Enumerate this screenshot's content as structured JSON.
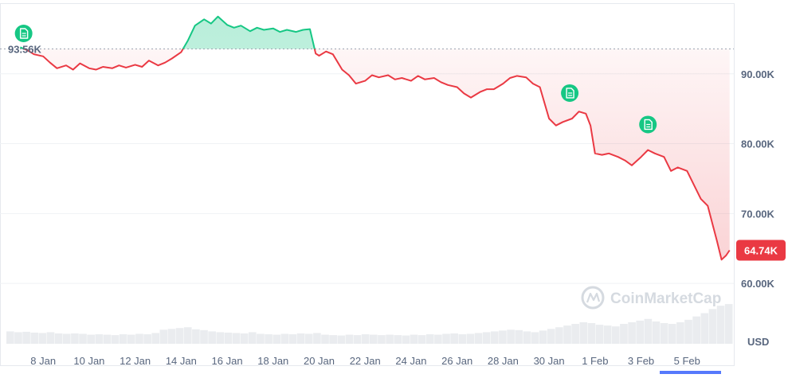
{
  "chart_data": {
    "type": "line",
    "currency_label": "USD",
    "watermark": "CoinMarketCap",
    "reference_price": {
      "value": 93.56,
      "label": "93.56K"
    },
    "current_price": {
      "value": 64.74,
      "label": "64.74K"
    },
    "colors": {
      "up": "#16c784",
      "down": "#ea3943",
      "axis_text": "#58667e",
      "grid": "#eff2f5",
      "volume": "#d9dde2"
    },
    "ylim": [
      55.0,
      100.0
    ],
    "y_ticks": [
      {
        "value": 90,
        "label": "90.00K"
      },
      {
        "value": 80,
        "label": "80.00K"
      },
      {
        "value": 70,
        "label": "70.00K"
      },
      {
        "value": 60,
        "label": "60.00K"
      }
    ],
    "x_ticks": [
      {
        "day": 1,
        "label": "8 Jan"
      },
      {
        "day": 3,
        "label": "10 Jan"
      },
      {
        "day": 5,
        "label": "12 Jan"
      },
      {
        "day": 7,
        "label": "14 Jan"
      },
      {
        "day": 9,
        "label": "16 Jan"
      },
      {
        "day": 11,
        "label": "18 Jan"
      },
      {
        "day": 13,
        "label": "20 Jan"
      },
      {
        "day": 15,
        "label": "22 Jan"
      },
      {
        "day": 17,
        "label": "24 Jan"
      },
      {
        "day": 19,
        "label": "26 Jan"
      },
      {
        "day": 21,
        "label": "28 Jan"
      },
      {
        "day": 23,
        "label": "30 Jan"
      },
      {
        "day": 25,
        "label": "1 Feb"
      },
      {
        "day": 27,
        "label": "3 Feb"
      },
      {
        "day": 29,
        "label": "5 Feb"
      }
    ],
    "series": [
      {
        "values": [
          [
            0.0,
            93.8
          ],
          [
            0.3,
            93.4
          ],
          [
            0.6,
            92.8
          ],
          [
            1.0,
            92.5
          ],
          [
            1.3,
            91.6
          ],
          [
            1.6,
            90.8
          ],
          [
            2.0,
            91.2
          ],
          [
            2.3,
            90.6
          ],
          [
            2.6,
            91.5
          ],
          [
            3.0,
            90.8
          ],
          [
            3.3,
            90.6
          ],
          [
            3.6,
            91.0
          ],
          [
            4.0,
            90.8
          ],
          [
            4.3,
            91.2
          ],
          [
            4.6,
            90.9
          ],
          [
            5.0,
            91.3
          ],
          [
            5.3,
            91.0
          ],
          [
            5.6,
            91.9
          ],
          [
            6.0,
            91.2
          ],
          [
            6.3,
            91.6
          ],
          [
            6.6,
            92.2
          ],
          [
            7.0,
            93.1
          ],
          [
            7.3,
            94.8
          ],
          [
            7.6,
            96.9
          ],
          [
            8.0,
            97.8
          ],
          [
            8.3,
            97.2
          ],
          [
            8.6,
            98.2
          ],
          [
            9.0,
            97.0
          ],
          [
            9.3,
            96.6
          ],
          [
            9.6,
            96.9
          ],
          [
            10.0,
            96.1
          ],
          [
            10.3,
            96.6
          ],
          [
            10.6,
            96.3
          ],
          [
            11.0,
            96.5
          ],
          [
            11.3,
            96.0
          ],
          [
            11.6,
            96.3
          ],
          [
            12.0,
            96.0
          ],
          [
            12.3,
            96.3
          ],
          [
            12.6,
            96.4
          ],
          [
            12.85,
            92.9
          ],
          [
            13.0,
            92.6
          ],
          [
            13.3,
            93.2
          ],
          [
            13.6,
            92.8
          ],
          [
            14.0,
            90.6
          ],
          [
            14.3,
            89.8
          ],
          [
            14.6,
            88.6
          ],
          [
            15.0,
            89.0
          ],
          [
            15.3,
            89.8
          ],
          [
            15.6,
            89.5
          ],
          [
            16.0,
            89.8
          ],
          [
            16.3,
            89.2
          ],
          [
            16.6,
            89.4
          ],
          [
            17.0,
            89.0
          ],
          [
            17.3,
            89.7
          ],
          [
            17.6,
            89.2
          ],
          [
            18.0,
            89.4
          ],
          [
            18.3,
            88.8
          ],
          [
            18.6,
            88.4
          ],
          [
            19.0,
            88.1
          ],
          [
            19.3,
            87.2
          ],
          [
            19.6,
            86.6
          ],
          [
            20.0,
            87.4
          ],
          [
            20.3,
            87.8
          ],
          [
            20.6,
            87.8
          ],
          [
            21.0,
            88.6
          ],
          [
            21.3,
            89.4
          ],
          [
            21.6,
            89.7
          ],
          [
            22.0,
            89.5
          ],
          [
            22.3,
            88.6
          ],
          [
            22.6,
            88.1
          ],
          [
            23.0,
            83.6
          ],
          [
            23.3,
            82.6
          ],
          [
            23.6,
            83.1
          ],
          [
            24.0,
            83.6
          ],
          [
            24.3,
            84.6
          ],
          [
            24.6,
            84.3
          ],
          [
            24.8,
            82.6
          ],
          [
            25.0,
            78.6
          ],
          [
            25.3,
            78.4
          ],
          [
            25.6,
            78.6
          ],
          [
            26.0,
            78.1
          ],
          [
            26.3,
            77.6
          ],
          [
            26.6,
            76.9
          ],
          [
            27.0,
            78.1
          ],
          [
            27.3,
            79.1
          ],
          [
            27.6,
            78.6
          ],
          [
            28.0,
            78.1
          ],
          [
            28.3,
            76.1
          ],
          [
            28.6,
            76.6
          ],
          [
            29.0,
            76.1
          ],
          [
            29.3,
            74.1
          ],
          [
            29.6,
            72.1
          ],
          [
            29.9,
            71.1
          ],
          [
            30.1,
            68.6
          ],
          [
            30.3,
            66.1
          ],
          [
            30.5,
            63.4
          ],
          [
            30.7,
            64.0
          ],
          [
            30.85,
            64.74
          ]
        ]
      }
    ],
    "volume": [
      0.3,
      0.28,
      0.29,
      0.27,
      0.26,
      0.28,
      0.25,
      0.24,
      0.25,
      0.24,
      0.22,
      0.23,
      0.22,
      0.21,
      0.23,
      0.22,
      0.24,
      0.23,
      0.26,
      0.34,
      0.36,
      0.38,
      0.4,
      0.35,
      0.33,
      0.3,
      0.28,
      0.27,
      0.26,
      0.25,
      0.28,
      0.24,
      0.23,
      0.22,
      0.24,
      0.23,
      0.25,
      0.24,
      0.26,
      0.22,
      0.21,
      0.2,
      0.22,
      0.21,
      0.23,
      0.22,
      0.21,
      0.22,
      0.21,
      0.2,
      0.22,
      0.21,
      0.23,
      0.22,
      0.24,
      0.25,
      0.23,
      0.24,
      0.26,
      0.28,
      0.3,
      0.32,
      0.34,
      0.33,
      0.3,
      0.28,
      0.32,
      0.36,
      0.4,
      0.44,
      0.48,
      0.52,
      0.5,
      0.46,
      0.44,
      0.42,
      0.48,
      0.52,
      0.56,
      0.6,
      0.54,
      0.5,
      0.48,
      0.52,
      0.58,
      0.66,
      0.74,
      0.84,
      0.92,
      0.96
    ],
    "news_markers": [
      {
        "day": 0.15,
        "icon": "document-icon"
      },
      {
        "day": 23.9,
        "icon": "document-icon"
      },
      {
        "day": 27.3,
        "icon": "document-icon"
      }
    ]
  }
}
